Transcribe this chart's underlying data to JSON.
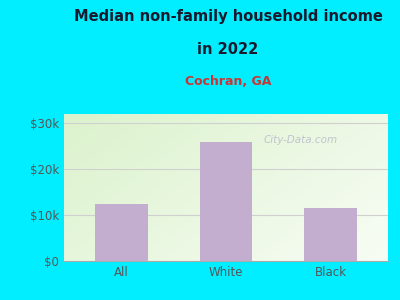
{
  "categories": [
    "All",
    "White",
    "Black"
  ],
  "values": [
    12500,
    26000,
    11500
  ],
  "bar_color": "#c4aed0",
  "title_line1": "Median non-family household income",
  "title_line2": "in 2022",
  "subtitle": "Cochran, GA",
  "title_color": "#1a1a2e",
  "subtitle_color": "#cc3333",
  "background_color": "#00eeff",
  "ylabel_ticks": [
    0,
    10000,
    20000,
    30000
  ],
  "ylabel_labels": [
    "$0",
    "$10k",
    "$20k",
    "$30k"
  ],
  "ylim": [
    0,
    32000
  ],
  "grid_color": "#d0d0d0",
  "watermark": "City-Data.com",
  "watermark_color": "#bbbbcc",
  "tick_color": "#555555"
}
